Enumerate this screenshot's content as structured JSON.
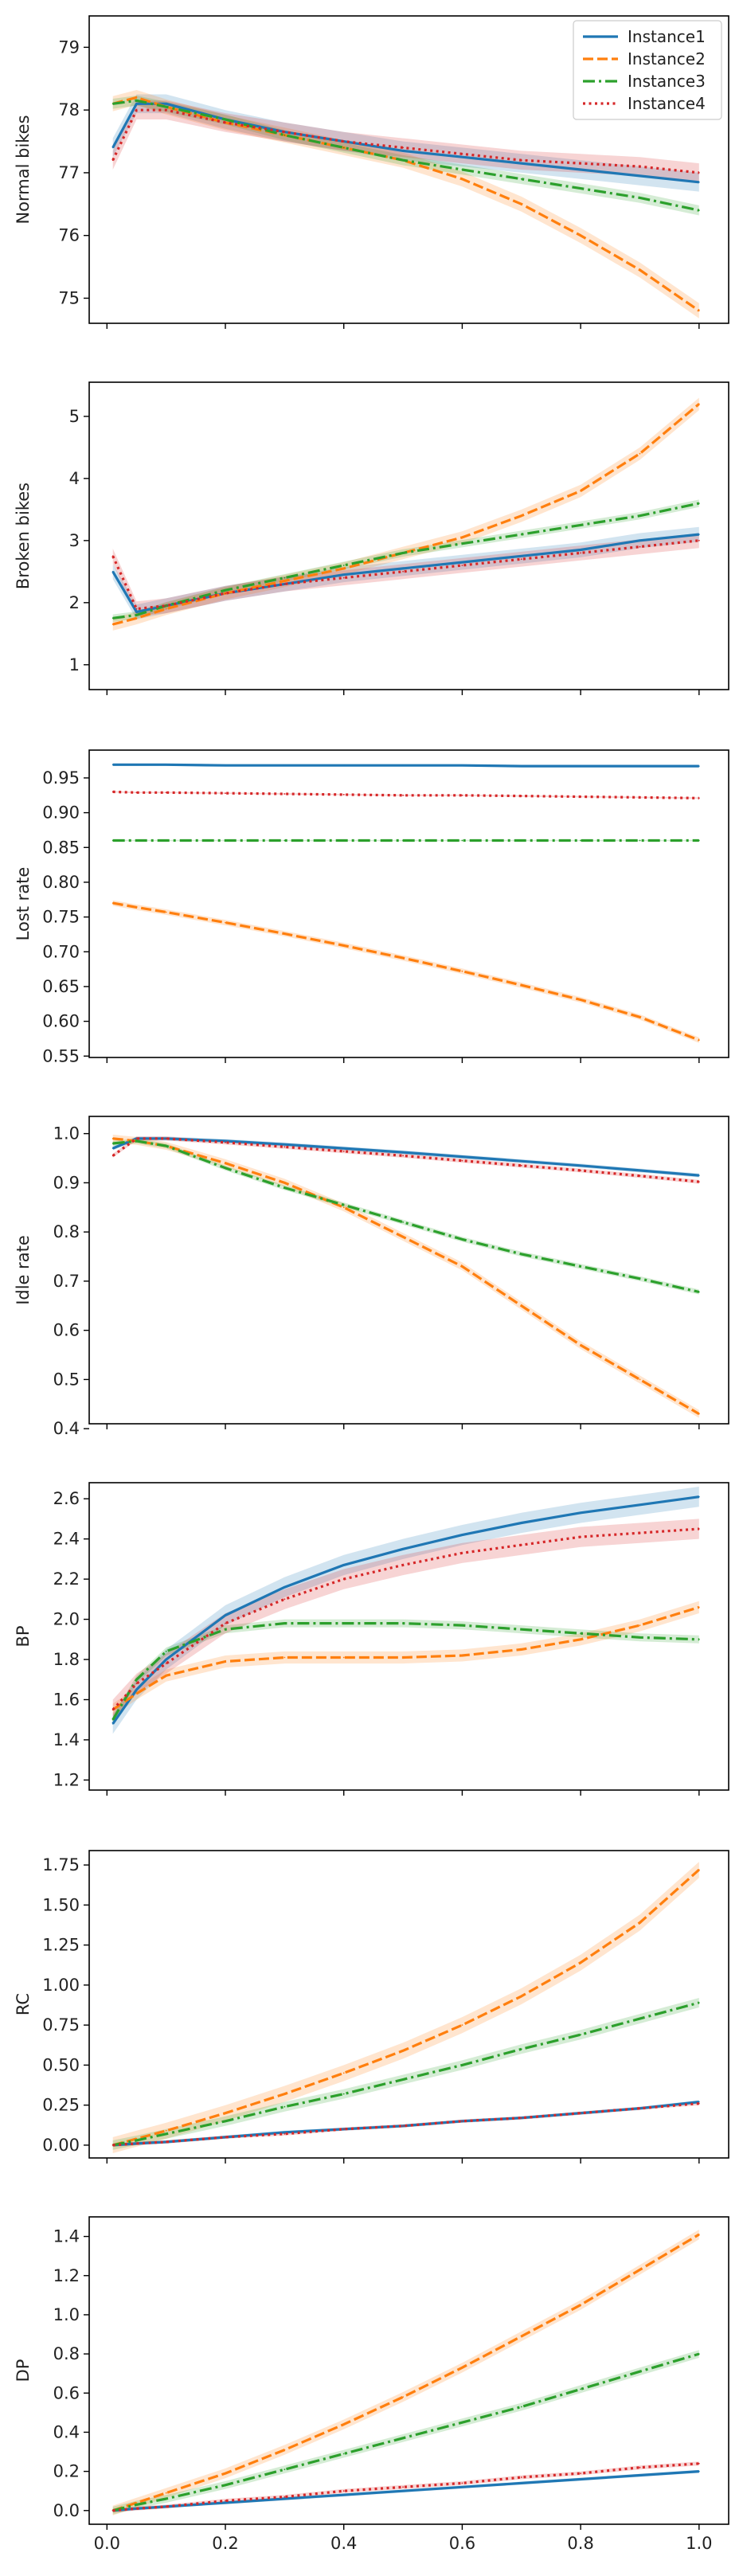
{
  "figure": {
    "legend_loc": "upper right"
  },
  "chart_data": [
    {
      "type": "line",
      "title": "",
      "xlabel": "",
      "ylabel": "Normal bikes",
      "xlim": [
        -0.03,
        1.05
      ],
      "ylim": [
        74.6,
        79.5
      ],
      "xticks": [
        0,
        0.2,
        0.4,
        0.6,
        0.8,
        1.0
      ],
      "xtick_labels": [],
      "yticks": [
        75,
        76,
        77,
        78,
        79
      ],
      "ytick_labels": [
        "75",
        "76",
        "77",
        "78",
        "79"
      ],
      "grid": false,
      "legend": true,
      "x": [
        0.01,
        0.05,
        0.1,
        0.2,
        0.3,
        0.4,
        0.5,
        0.6,
        0.7,
        0.8,
        0.9,
        1.0
      ],
      "series": [
        {
          "name": "Instance1",
          "color": "#1f77b4",
          "dash": "solid",
          "values": [
            77.4,
            78.1,
            78.1,
            77.85,
            77.65,
            77.5,
            77.35,
            77.25,
            77.15,
            77.05,
            76.95,
            76.85
          ],
          "ci": 0.15
        },
        {
          "name": "Instance2",
          "color": "#ff7f0e",
          "dash": "dashed",
          "values": [
            78.1,
            78.2,
            78.05,
            77.8,
            77.6,
            77.4,
            77.2,
            76.9,
            76.5,
            76.0,
            75.45,
            74.8
          ],
          "ci": 0.12
        },
        {
          "name": "Instance3",
          "color": "#2ca02c",
          "dash": "dashdot",
          "values": [
            78.1,
            78.15,
            78.05,
            77.85,
            77.6,
            77.4,
            77.2,
            77.05,
            76.9,
            76.75,
            76.6,
            76.4
          ],
          "ci": 0.08
        },
        {
          "name": "Instance4",
          "color": "#d62728",
          "dash": "dotted",
          "values": [
            77.2,
            78.0,
            78.0,
            77.8,
            77.65,
            77.5,
            77.4,
            77.3,
            77.2,
            77.15,
            77.1,
            77.0
          ],
          "ci": 0.15
        }
      ]
    },
    {
      "type": "line",
      "title": "",
      "xlabel": "",
      "ylabel": "Broken bikes",
      "xlim": [
        -0.03,
        1.05
      ],
      "ylim": [
        0.6,
        5.55
      ],
      "xticks": [
        0,
        0.2,
        0.4,
        0.6,
        0.8,
        1.0
      ],
      "xtick_labels": [],
      "yticks": [
        1,
        2,
        3,
        4,
        5
      ],
      "ytick_labels": [
        "1",
        "2",
        "3",
        "4",
        "5"
      ],
      "grid": false,
      "legend": false,
      "x": [
        0.01,
        0.05,
        0.1,
        0.2,
        0.3,
        0.4,
        0.5,
        0.6,
        0.7,
        0.8,
        0.9,
        1.0
      ],
      "series": [
        {
          "name": "Instance1",
          "color": "#1f77b4",
          "dash": "solid",
          "values": [
            2.5,
            1.85,
            1.95,
            2.15,
            2.3,
            2.45,
            2.55,
            2.65,
            2.75,
            2.85,
            3.0,
            3.1
          ],
          "ci": 0.12
        },
        {
          "name": "Instance2",
          "color": "#ff7f0e",
          "dash": "dashed",
          "values": [
            1.65,
            1.75,
            1.9,
            2.15,
            2.35,
            2.55,
            2.8,
            3.05,
            3.4,
            3.8,
            4.4,
            5.2
          ],
          "ci": 0.1
        },
        {
          "name": "Instance3",
          "color": "#2ca02c",
          "dash": "dashdot",
          "values": [
            1.75,
            1.8,
            1.95,
            2.2,
            2.4,
            2.6,
            2.8,
            2.95,
            3.1,
            3.25,
            3.4,
            3.6
          ],
          "ci": 0.06
        },
        {
          "name": "Instance4",
          "color": "#d62728",
          "dash": "dotted",
          "values": [
            2.75,
            1.9,
            1.95,
            2.15,
            2.3,
            2.4,
            2.5,
            2.6,
            2.7,
            2.8,
            2.9,
            3.0
          ],
          "ci": 0.12
        }
      ]
    },
    {
      "type": "line",
      "title": "",
      "xlabel": "",
      "ylabel": "Lost rate",
      "xlim": [
        -0.03,
        1.05
      ],
      "ylim": [
        0.548,
        0.99
      ],
      "xticks": [
        0,
        0.2,
        0.4,
        0.6,
        0.8,
        1.0
      ],
      "xtick_labels": [],
      "yticks": [
        0.55,
        0.6,
        0.65,
        0.7,
        0.75,
        0.8,
        0.85,
        0.9,
        0.95
      ],
      "ytick_labels": [
        "0.55",
        "0.60",
        "0.65",
        "0.70",
        "0.75",
        "0.80",
        "0.85",
        "0.90",
        "0.95"
      ],
      "grid": false,
      "legend": false,
      "x": [
        0.01,
        0.05,
        0.1,
        0.2,
        0.3,
        0.4,
        0.5,
        0.6,
        0.7,
        0.8,
        0.9,
        1.0
      ],
      "series": [
        {
          "name": "Instance1",
          "color": "#1f77b4",
          "dash": "solid",
          "values": [
            0.969,
            0.969,
            0.969,
            0.968,
            0.968,
            0.968,
            0.968,
            0.968,
            0.967,
            0.967,
            0.967,
            0.967
          ],
          "ci": 0.001
        },
        {
          "name": "Instance2",
          "color": "#ff7f0e",
          "dash": "dashed",
          "values": [
            0.77,
            0.764,
            0.757,
            0.742,
            0.726,
            0.709,
            0.691,
            0.672,
            0.652,
            0.631,
            0.606,
            0.573
          ],
          "ci": 0.004
        },
        {
          "name": "Instance3",
          "color": "#2ca02c",
          "dash": "dashdot",
          "values": [
            0.86,
            0.86,
            0.86,
            0.86,
            0.86,
            0.86,
            0.86,
            0.86,
            0.86,
            0.86,
            0.86,
            0.86
          ],
          "ci": 0.001
        },
        {
          "name": "Instance4",
          "color": "#d62728",
          "dash": "dotted",
          "values": [
            0.93,
            0.929,
            0.929,
            0.928,
            0.927,
            0.926,
            0.925,
            0.925,
            0.924,
            0.923,
            0.922,
            0.921
          ],
          "ci": 0.001
        }
      ]
    },
    {
      "type": "line",
      "title": "",
      "xlabel": "",
      "ylabel": "Idle rate",
      "xlim": [
        -0.03,
        1.05
      ],
      "ylim": [
        0.41,
        1.035
      ],
      "xticks": [
        0,
        0.2,
        0.4,
        0.6,
        0.8,
        1.0
      ],
      "xtick_labels": [],
      "yticks": [
        0.4,
        0.5,
        0.6,
        0.7,
        0.8,
        0.9,
        1.0
      ],
      "ytick_labels": [
        "0.4",
        "0.5",
        "0.6",
        "0.7",
        "0.8",
        "0.9",
        "1.0"
      ],
      "grid": false,
      "legend": false,
      "x": [
        0.01,
        0.05,
        0.1,
        0.2,
        0.3,
        0.4,
        0.5,
        0.6,
        0.7,
        0.8,
        0.9,
        1.0
      ],
      "series": [
        {
          "name": "Instance1",
          "color": "#1f77b4",
          "dash": "solid",
          "values": [
            0.97,
            0.99,
            0.99,
            0.985,
            0.978,
            0.97,
            0.962,
            0.953,
            0.944,
            0.935,
            0.925,
            0.915
          ],
          "ci": 0.004
        },
        {
          "name": "Instance2",
          "color": "#ff7f0e",
          "dash": "dashed",
          "values": [
            0.99,
            0.985,
            0.975,
            0.94,
            0.9,
            0.85,
            0.79,
            0.73,
            0.65,
            0.57,
            0.5,
            0.43
          ],
          "ci": 0.008
        },
        {
          "name": "Instance3",
          "color": "#2ca02c",
          "dash": "dashdot",
          "values": [
            0.98,
            0.985,
            0.975,
            0.93,
            0.89,
            0.855,
            0.82,
            0.785,
            0.755,
            0.73,
            0.705,
            0.678
          ],
          "ci": 0.005
        },
        {
          "name": "Instance4",
          "color": "#d62728",
          "dash": "dotted",
          "values": [
            0.955,
            0.99,
            0.99,
            0.982,
            0.973,
            0.964,
            0.955,
            0.945,
            0.935,
            0.925,
            0.914,
            0.902
          ],
          "ci": 0.004
        }
      ]
    },
    {
      "type": "line",
      "title": "",
      "xlabel": "",
      "ylabel": "BP",
      "xlim": [
        -0.03,
        1.05
      ],
      "ylim": [
        1.15,
        2.68
      ],
      "xticks": [
        0,
        0.2,
        0.4,
        0.6,
        0.8,
        1.0
      ],
      "xtick_labels": [],
      "yticks": [
        1.2,
        1.4,
        1.6,
        1.8,
        2.0,
        2.2,
        2.4,
        2.6
      ],
      "ytick_labels": [
        "1.2",
        "1.4",
        "1.6",
        "1.8",
        "2.0",
        "2.2",
        "2.4",
        "2.6"
      ],
      "grid": false,
      "legend": false,
      "x": [
        0.01,
        0.05,
        0.1,
        0.2,
        0.3,
        0.4,
        0.5,
        0.6,
        0.7,
        0.8,
        0.9,
        1.0
      ],
      "series": [
        {
          "name": "Instance1",
          "color": "#1f77b4",
          "dash": "solid",
          "values": [
            1.48,
            1.65,
            1.8,
            2.02,
            2.16,
            2.27,
            2.35,
            2.42,
            2.48,
            2.53,
            2.57,
            2.61
          ],
          "ci": 0.05
        },
        {
          "name": "Instance2",
          "color": "#ff7f0e",
          "dash": "dashed",
          "values": [
            1.55,
            1.63,
            1.72,
            1.79,
            1.81,
            1.81,
            1.81,
            1.82,
            1.85,
            1.9,
            1.97,
            2.06
          ],
          "ci": 0.03
        },
        {
          "name": "Instance3",
          "color": "#2ca02c",
          "dash": "dashdot",
          "values": [
            1.5,
            1.7,
            1.84,
            1.95,
            1.98,
            1.98,
            1.98,
            1.97,
            1.95,
            1.93,
            1.91,
            1.9
          ],
          "ci": 0.02
        },
        {
          "name": "Instance4",
          "color": "#d62728",
          "dash": "dotted",
          "values": [
            1.55,
            1.68,
            1.78,
            1.98,
            2.1,
            2.2,
            2.27,
            2.33,
            2.37,
            2.41,
            2.43,
            2.45
          ],
          "ci": 0.05
        }
      ]
    },
    {
      "type": "line",
      "title": "",
      "xlabel": "",
      "ylabel": "RC",
      "xlim": [
        -0.03,
        1.05
      ],
      "ylim": [
        -0.08,
        1.84
      ],
      "xticks": [
        0,
        0.2,
        0.4,
        0.6,
        0.8,
        1.0
      ],
      "xtick_labels": [],
      "yticks": [
        0,
        0.25,
        0.5,
        0.75,
        1.0,
        1.25,
        1.5,
        1.75
      ],
      "ytick_labels": [
        "0.00",
        "0.25",
        "0.50",
        "0.75",
        "1.00",
        "1.25",
        "1.50",
        "1.75"
      ],
      "grid": false,
      "legend": false,
      "x": [
        0.01,
        0.05,
        0.1,
        0.2,
        0.3,
        0.4,
        0.5,
        0.6,
        0.7,
        0.8,
        0.9,
        1.0
      ],
      "series": [
        {
          "name": "Instance1",
          "color": "#1f77b4",
          "dash": "solid",
          "values": [
            0.0,
            0.01,
            0.02,
            0.05,
            0.08,
            0.1,
            0.12,
            0.15,
            0.17,
            0.2,
            0.23,
            0.27
          ],
          "ci": 0.01
        },
        {
          "name": "Instance2",
          "color": "#ff7f0e",
          "dash": "dashed",
          "values": [
            0.0,
            0.04,
            0.09,
            0.2,
            0.32,
            0.45,
            0.59,
            0.75,
            0.93,
            1.14,
            1.39,
            1.72
          ],
          "ci": 0.05
        },
        {
          "name": "Instance3",
          "color": "#2ca02c",
          "dash": "dashdot",
          "values": [
            0.0,
            0.03,
            0.07,
            0.15,
            0.24,
            0.32,
            0.41,
            0.5,
            0.6,
            0.69,
            0.79,
            0.89
          ],
          "ci": 0.03
        },
        {
          "name": "Instance4",
          "color": "#d62728",
          "dash": "dotted",
          "values": [
            0.0,
            0.01,
            0.02,
            0.05,
            0.07,
            0.1,
            0.12,
            0.15,
            0.17,
            0.2,
            0.23,
            0.26
          ],
          "ci": 0.01
        }
      ]
    },
    {
      "type": "line",
      "title": "",
      "xlabel": "",
      "ylabel": "DP",
      "xlim": [
        -0.03,
        1.05
      ],
      "ylim": [
        -0.07,
        1.5
      ],
      "xticks": [
        0,
        0.2,
        0.4,
        0.6,
        0.8,
        1.0
      ],
      "xtick_labels": [
        "0.0",
        "0.2",
        "0.4",
        "0.6",
        "0.8",
        "1.0"
      ],
      "yticks": [
        0,
        0.2,
        0.4,
        0.6,
        0.8,
        1.0,
        1.2,
        1.4
      ],
      "ytick_labels": [
        "0.0",
        "0.2",
        "0.4",
        "0.6",
        "0.8",
        "1.0",
        "1.2",
        "1.4"
      ],
      "grid": false,
      "legend": false,
      "x": [
        0.01,
        0.05,
        0.1,
        0.2,
        0.3,
        0.4,
        0.5,
        0.6,
        0.7,
        0.8,
        0.9,
        1.0
      ],
      "series": [
        {
          "name": "Instance1",
          "color": "#1f77b4",
          "dash": "solid",
          "values": [
            0.0,
            0.01,
            0.02,
            0.04,
            0.06,
            0.08,
            0.1,
            0.12,
            0.14,
            0.16,
            0.18,
            0.2
          ],
          "ci": 0.008
        },
        {
          "name": "Instance2",
          "color": "#ff7f0e",
          "dash": "dashed",
          "values": [
            0.0,
            0.04,
            0.09,
            0.19,
            0.31,
            0.44,
            0.58,
            0.73,
            0.89,
            1.05,
            1.23,
            1.41
          ],
          "ci": 0.025
        },
        {
          "name": "Instance3",
          "color": "#2ca02c",
          "dash": "dashdot",
          "values": [
            0.0,
            0.03,
            0.06,
            0.13,
            0.21,
            0.29,
            0.37,
            0.45,
            0.53,
            0.62,
            0.71,
            0.8
          ],
          "ci": 0.02
        },
        {
          "name": "Instance4",
          "color": "#d62728",
          "dash": "dotted",
          "values": [
            0.0,
            0.01,
            0.02,
            0.05,
            0.07,
            0.1,
            0.12,
            0.14,
            0.17,
            0.19,
            0.22,
            0.24
          ],
          "ci": 0.01
        }
      ]
    }
  ]
}
